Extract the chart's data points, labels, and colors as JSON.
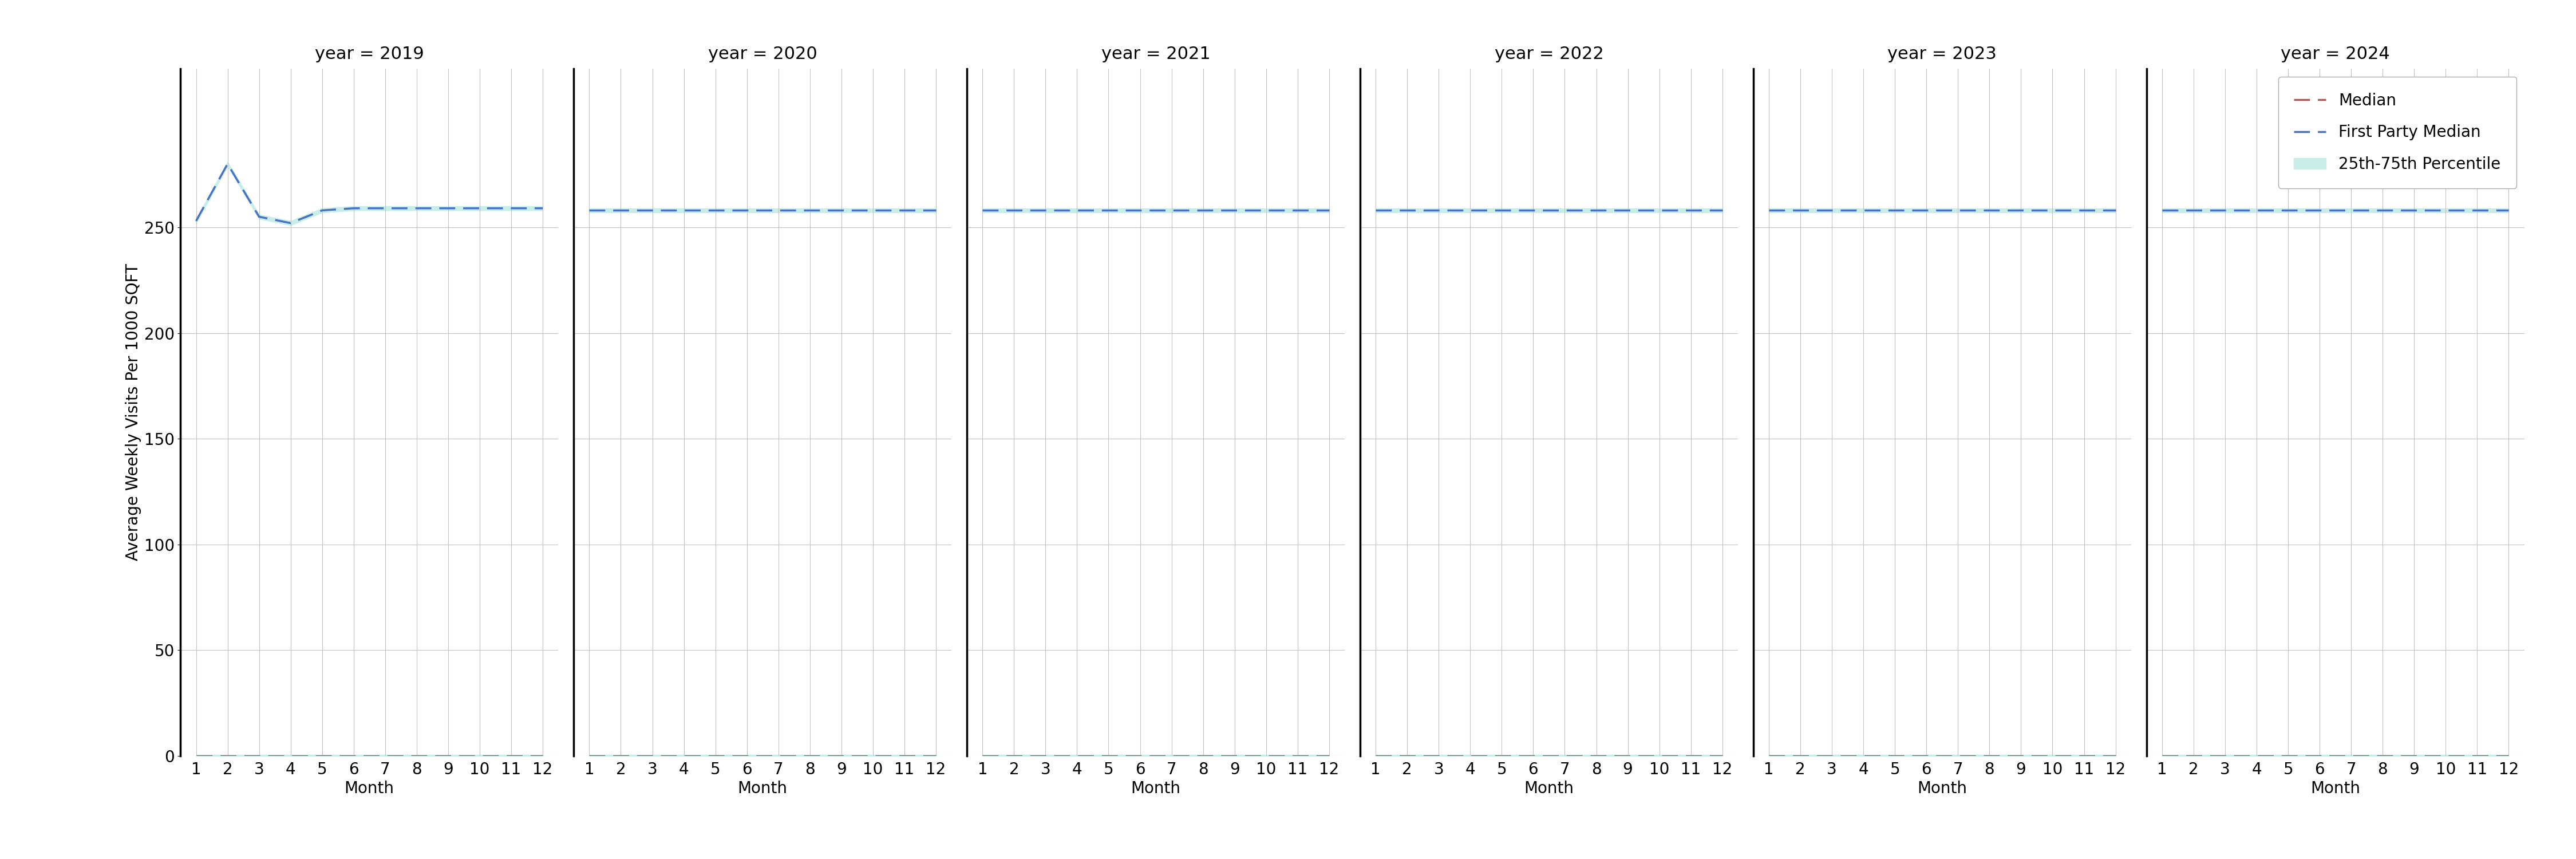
{
  "years": [
    2019,
    2020,
    2021,
    2022,
    2023,
    2024
  ],
  "months": [
    1,
    2,
    3,
    4,
    5,
    6,
    7,
    8,
    9,
    10,
    11,
    12
  ],
  "median_value": 0.0,
  "first_party_flat": 258,
  "first_party_2019": [
    253,
    280,
    255,
    252,
    258,
    259,
    259,
    259,
    259,
    259,
    259,
    259
  ],
  "ylabel": "Average Weekly Visits Per 1000 SQFT",
  "xlabel": "Month",
  "ylim": [
    0,
    325
  ],
  "yticks": [
    0,
    50,
    100,
    150,
    200,
    250
  ],
  "median_color": "#c0504d",
  "first_party_color": "#4472c4",
  "percentile_color": "#c8ede8",
  "background_color": "#ffffff",
  "grid_color": "#c0c0c0",
  "legend_labels": [
    "Median",
    "First Party Median",
    "25th-75th Percentile"
  ],
  "title_fontsize": 22,
  "label_fontsize": 20,
  "tick_fontsize": 20,
  "legend_fontsize": 20,
  "linewidth": 2.5
}
